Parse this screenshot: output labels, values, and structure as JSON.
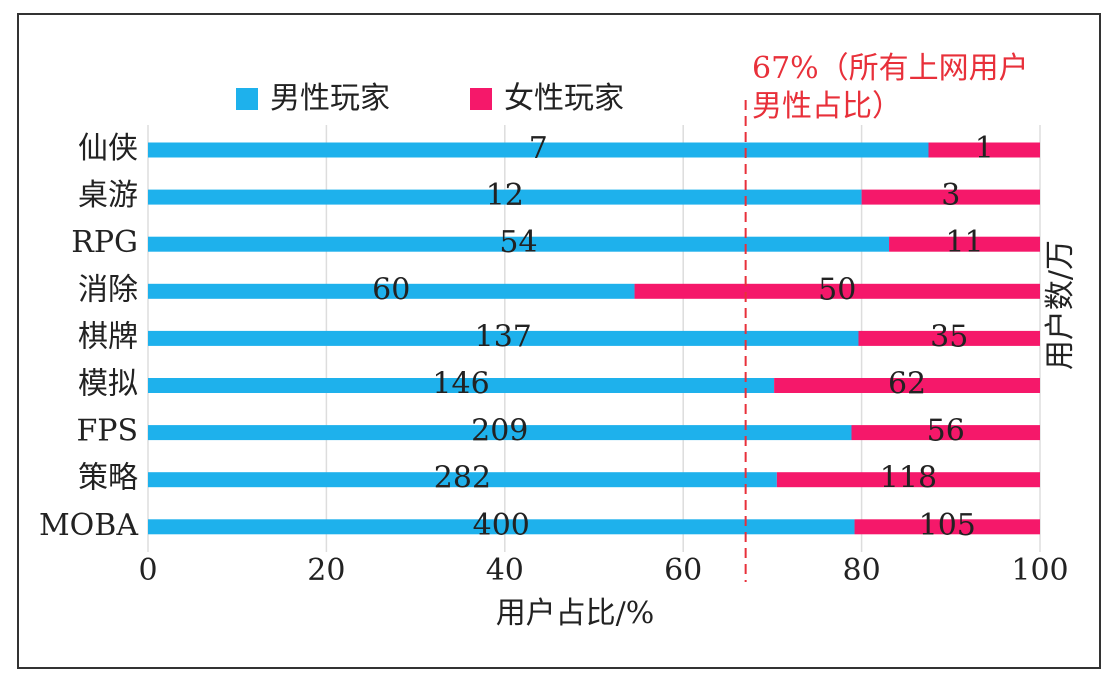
{
  "chart_data": {
    "type": "bar",
    "orientation": "horizontal",
    "stacking": "percent",
    "categories": [
      "仙侠",
      "桌游",
      "RPG",
      "消除",
      "棋牌",
      "模拟",
      "FPS",
      "策略",
      "MOBA"
    ],
    "series": [
      {
        "name": "男性玩家",
        "color": "#1eb1ec",
        "values": [
          7,
          12,
          54,
          60,
          137,
          146,
          209,
          282,
          400
        ]
      },
      {
        "name": "女性玩家",
        "color": "#f5186a",
        "values": [
          1,
          3,
          11,
          50,
          35,
          62,
          56,
          118,
          105
        ]
      }
    ],
    "xlim": [
      0,
      100
    ],
    "xticks": [
      0,
      20,
      40,
      60,
      80,
      100
    ],
    "grid": true,
    "xlabel": "用户占比/%",
    "ylabel": "用户数/万",
    "reference_line": {
      "value": 67,
      "color": "#e8303a",
      "label_lines": [
        "67%（所有上网用户",
        "男性占比）"
      ]
    },
    "legend": "top"
  }
}
